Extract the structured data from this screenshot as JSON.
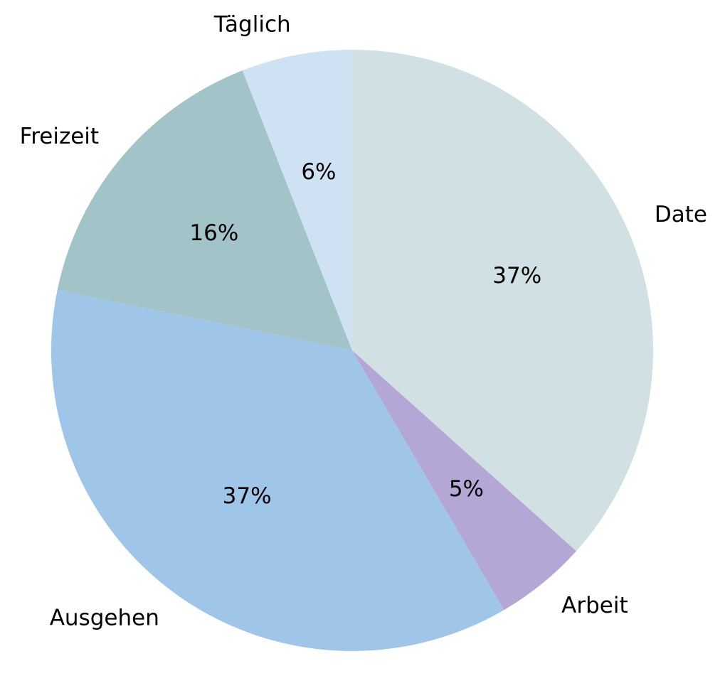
{
  "chart_data": {
    "type": "pie",
    "title": "",
    "start_angle_deg": 90,
    "direction": "clockwise",
    "slices": [
      {
        "label": "Date",
        "value": 37,
        "pct_text": "37%",
        "color": "#d1e0e3"
      },
      {
        "label": "Arbeit",
        "value": 5,
        "pct_text": "5%",
        "color": "#b4a7d6"
      },
      {
        "label": "Ausgehen",
        "value": 37,
        "pct_text": "37%",
        "color": "#9fc5e8"
      },
      {
        "label": "Freizeit",
        "value": 16,
        "pct_text": "16%",
        "color": "#a2c4c9"
      },
      {
        "label": "Täglich",
        "value": 6,
        "pct_text": "6%",
        "color": "#cfe2f3"
      }
    ]
  }
}
